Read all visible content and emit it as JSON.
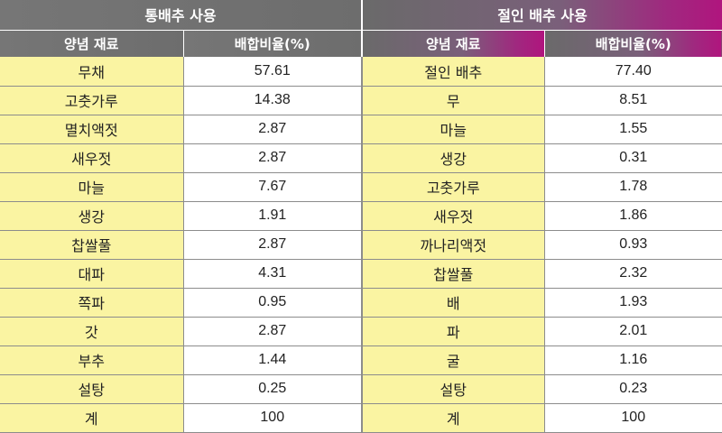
{
  "table": {
    "groups": [
      "통배추 사용",
      "절인 배추 사용"
    ],
    "subheaders": [
      "양념 재료",
      "배합비율(%)",
      "양념 재료",
      "배합비율(%)"
    ],
    "rows": [
      [
        "무채",
        "57.61",
        "절인 배추",
        "77.40"
      ],
      [
        "고춧가루",
        "14.38",
        "무",
        "8.51"
      ],
      [
        "멸치액젓",
        "2.87",
        "마늘",
        "1.55"
      ],
      [
        "새우젓",
        "2.87",
        "생강",
        "0.31"
      ],
      [
        "마늘",
        "7.67",
        "고춧가루",
        "1.78"
      ],
      [
        "생강",
        "1.91",
        "새우젓",
        "1.86"
      ],
      [
        "찹쌀풀",
        "2.87",
        "까나리액젓",
        "0.93"
      ],
      [
        "대파",
        "4.31",
        "찹쌀풀",
        "2.32"
      ],
      [
        "쪽파",
        "0.95",
        "배",
        "1.93"
      ],
      [
        "갓",
        "2.87",
        "파",
        "2.01"
      ],
      [
        "부추",
        "1.44",
        "굴",
        "1.16"
      ],
      [
        "설탕",
        "0.25",
        "설탕",
        "0.23"
      ],
      [
        "계",
        "100",
        "계",
        "100"
      ]
    ]
  }
}
